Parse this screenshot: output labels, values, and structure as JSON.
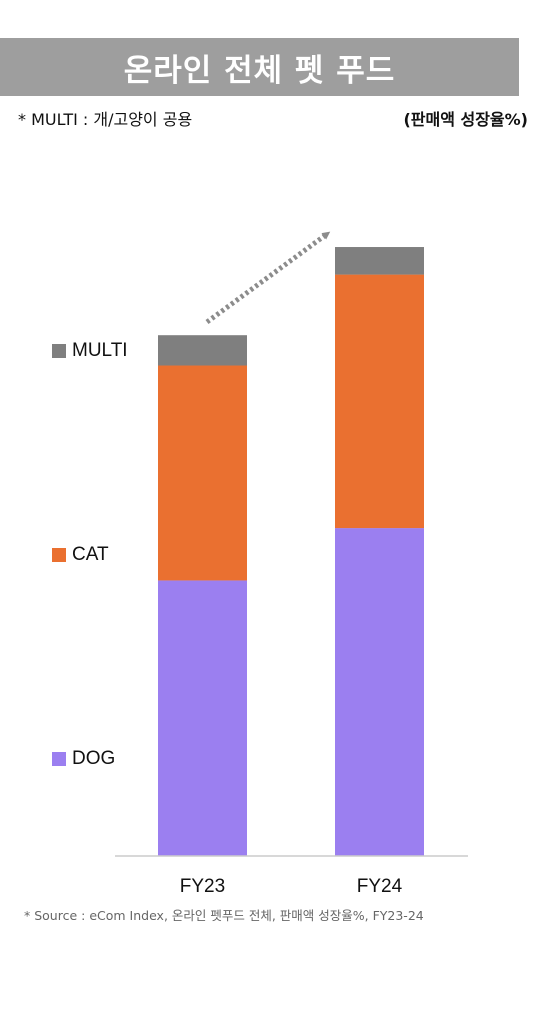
{
  "title": "온라인 전체 펫 푸드",
  "note_left": "* MULTI : 개/고양이 공용",
  "note_right": "(판매액 성장율%)",
  "source": "* Source : eCom Index, 온라인 펫푸드 전체, 판매액 성장율%, FY23-24",
  "colors": {
    "title_bg": "#9e9e9e",
    "DOG": "#9b7ff0",
    "CAT": "#ea7030",
    "MULTI": "#7f7f7f",
    "arrow": "#8c8c8c",
    "axis": "#cccccc"
  },
  "legend": [
    {
      "key": "MULTI",
      "label": "MULTI",
      "icon": "square-swatch"
    },
    {
      "key": "CAT",
      "label": "CAT",
      "icon": "square-swatch"
    },
    {
      "key": "DOG",
      "label": "DOG",
      "icon": "square-swatch"
    }
  ],
  "chart_data": {
    "type": "bar",
    "stacked": true,
    "categories": [
      "FY23",
      "FY24"
    ],
    "series": [
      {
        "name": "DOG",
        "values": [
          100,
          119
        ]
      },
      {
        "name": "CAT",
        "values": [
          78,
          92
        ]
      },
      {
        "name": "MULTI",
        "values": [
          11,
          10
        ]
      }
    ],
    "ylim": [
      0,
      225
    ],
    "grid": false,
    "legend_position": "left",
    "annotation": "dotted-growth-arrow"
  }
}
